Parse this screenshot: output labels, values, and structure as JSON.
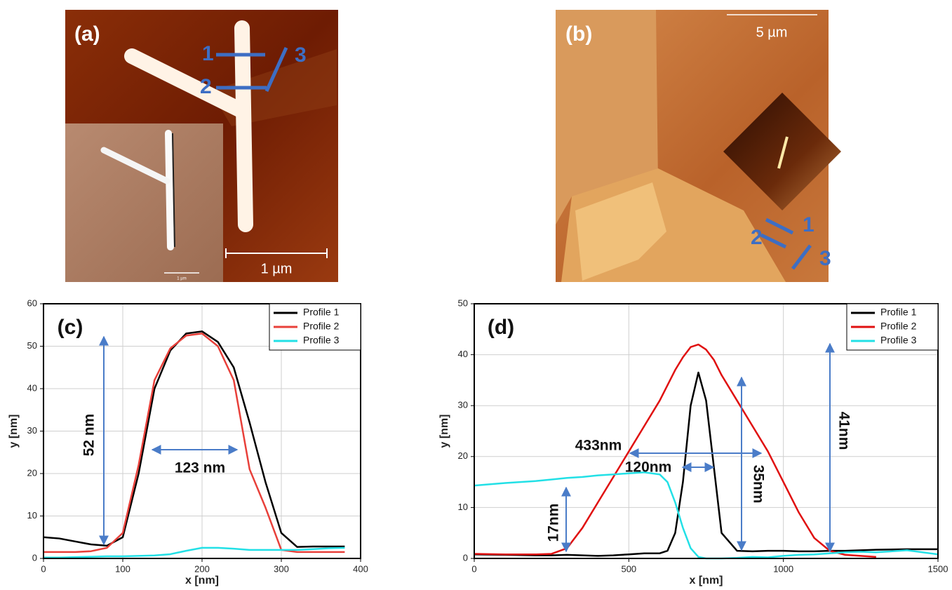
{
  "images": [
    {
      "label": "(a)",
      "profiles": [
        "1",
        "2",
        "3"
      ],
      "scale_bar": "1 µm",
      "inset_scale_bar": "1 µm"
    },
    {
      "label": "(b)",
      "profiles": [
        "1",
        "2",
        "3"
      ],
      "scale_bar": "5 µm"
    }
  ],
  "chart_data": [
    {
      "type": "line",
      "xlabel": "x [nm]",
      "ylabel": "y [nm]",
      "annotations": [
        "(c)",
        "52 nm",
        "123 nm"
      ],
      "x": [
        0,
        20,
        40,
        60,
        80,
        100,
        120,
        140,
        160,
        180,
        200,
        220,
        240,
        260,
        280,
        300,
        320,
        340,
        360,
        380
      ],
      "series": [
        {
          "name": "Profile 1",
          "color": "#000000",
          "values": [
            5,
            4.7,
            4,
            3.3,
            3,
            5,
            20,
            40,
            49,
            53,
            53.5,
            51,
            45,
            32,
            18,
            6,
            2.7,
            2.8,
            2.8,
            2.8
          ]
        },
        {
          "name": "Profile 2",
          "color": "#e8403a",
          "values": [
            1.5,
            1.5,
            1.5,
            1.7,
            2.5,
            6,
            22,
            42,
            49.5,
            52.5,
            53,
            50,
            42,
            21,
            12,
            2,
            1.5,
            1.5,
            1.5,
            1.5
          ]
        },
        {
          "name": "Profile 3",
          "color": "#22e0e6",
          "values": [
            0.2,
            0.2,
            0.3,
            0.4,
            0.5,
            0.5,
            0.6,
            0.7,
            1,
            1.8,
            2.5,
            2.5,
            2.3,
            2,
            2,
            2,
            2,
            2.2,
            2.4,
            2.5
          ]
        }
      ],
      "xlim": [
        0,
        400
      ],
      "xticks": [
        0,
        100,
        200,
        300,
        400
      ],
      "ylim": [
        0,
        60
      ],
      "yticks": [
        0,
        10,
        20,
        30,
        40,
        50,
        60
      ],
      "grid": true,
      "legend": "upper right"
    },
    {
      "type": "line",
      "xlabel": "x [nm]",
      "ylabel": "y [nm]",
      "annotations": [
        "(d)",
        "433nm",
        "120nm",
        "35nm",
        "41nm",
        "17nm"
      ],
      "x": [
        0,
        100,
        200,
        250,
        300,
        350,
        400,
        450,
        500,
        550,
        600,
        625,
        650,
        675,
        700,
        725,
        750,
        775,
        800,
        850,
        900,
        950,
        1000,
        1050,
        1100,
        1150,
        1200,
        1250,
        1300,
        1400,
        1500
      ],
      "series": [
        {
          "name": "Profile 1",
          "color": "#000000",
          "values": [
            0.8,
            0.7,
            0.6,
            0.6,
            0.7,
            0.6,
            0.5,
            0.6,
            0.8,
            1,
            1,
            1.5,
            5,
            15,
            30,
            36.5,
            31,
            18,
            5,
            1.5,
            1.4,
            1.5,
            1.5,
            1.4,
            1.4,
            1.5,
            1.5,
            1.6,
            1.7,
            1.8,
            1.8
          ]
        },
        {
          "name": "Profile 2",
          "color": "#e01010",
          "values": [
            0.9,
            0.8,
            0.8,
            0.9,
            2,
            6,
            11,
            16,
            21,
            26,
            31,
            34,
            37,
            39.5,
            41.5,
            42,
            41,
            39,
            36,
            31,
            26,
            21,
            15,
            9,
            4,
            1.5,
            0.7,
            0.5,
            0.3,
            null,
            null
          ]
        },
        {
          "name": "Profile 3",
          "color": "#22e0e6",
          "values": [
            14.3,
            14.8,
            15.2,
            15.5,
            15.8,
            16,
            16.3,
            16.5,
            16.7,
            16.9,
            16.5,
            15,
            11,
            6,
            2,
            0.3,
            0,
            0,
            0,
            0.1,
            0.3,
            0.2,
            0.5,
            0.7,
            0.8,
            1,
            1.2,
            1.3,
            1.2,
            1.6,
            0.8
          ]
        }
      ],
      "xlim": [
        0,
        1500
      ],
      "xticks": [
        0,
        500,
        1000,
        1500
      ],
      "ylim": [
        0,
        50
      ],
      "yticks": [
        0,
        10,
        20,
        30,
        40,
        50
      ],
      "grid": true,
      "legend": "upper right"
    }
  ]
}
